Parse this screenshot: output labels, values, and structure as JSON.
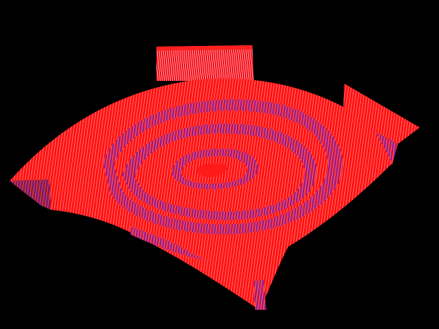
{
  "scene": {
    "subject": "3d-wireframe-surface",
    "background_color": "#000000",
    "mesh_color_front": "#ff0000",
    "mesh_color_shadow": "#2a1cff",
    "mesh_highlight_color": "#ffffff"
  }
}
